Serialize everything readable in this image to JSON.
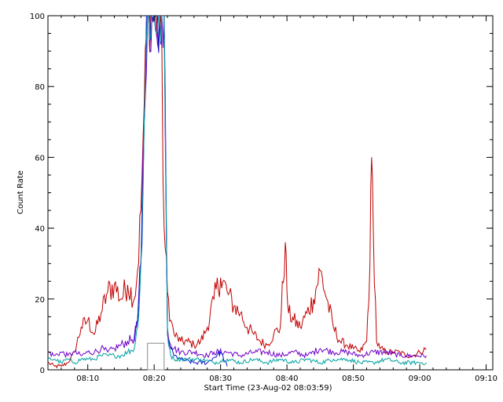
{
  "chart_data": {
    "type": "line",
    "title": "",
    "xlabel": "Start Time (23-Aug-02 08:03:59)",
    "ylabel": "Count Rate",
    "x_unit": "time (HH:MM, 23-Aug-02)",
    "xlim": [
      "08:04",
      "09:11"
    ],
    "ylim": [
      0,
      100
    ],
    "x_ticks": [
      "08:10",
      "08:20",
      "08:30",
      "08:40",
      "08:50",
      "09:00",
      "09:10"
    ],
    "y_ticks": [
      0,
      20,
      40,
      60,
      80,
      100
    ],
    "grid": false,
    "legend": "none",
    "series": [
      {
        "color": "#c00000",
        "x": [
          "08:04",
          "08:05",
          "08:06",
          "08:07",
          "08:08",
          "08:09",
          "08:10",
          "08:11",
          "08:12",
          "08:13",
          "08:14",
          "08:15",
          "08:16",
          "08:17",
          "08:17:30",
          "08:18",
          "08:18:30",
          "08:19",
          "08:19:30",
          "08:20",
          "08:20:15",
          "08:20:30",
          "08:21",
          "08:21:30",
          "08:22",
          "08:22:30",
          "08:23",
          "08:24",
          "08:25",
          "08:26",
          "08:27",
          "08:28",
          "08:29",
          "08:30",
          "08:31",
          "08:32",
          "08:33",
          "08:34",
          "08:35",
          "08:36",
          "08:37",
          "08:38",
          "08:39",
          "08:39:45",
          "08:40",
          "08:40:15",
          "08:41",
          "08:42",
          "08:43",
          "08:44",
          "08:45",
          "08:46",
          "08:47",
          "08:48",
          "08:49",
          "08:50",
          "08:51",
          "08:52",
          "08:52:30",
          "08:52:45",
          "08:53",
          "08:53:30",
          "08:54",
          "08:55",
          "08:56",
          "08:57",
          "08:58",
          "08:59",
          "09:00",
          "09:01"
        ],
        "values": [
          2,
          1,
          1,
          2,
          5,
          12,
          14,
          10,
          16,
          22,
          24,
          20,
          24,
          20,
          28,
          45,
          75,
          100,
          100,
          100,
          100,
          92,
          100,
          40,
          22,
          14,
          10,
          8,
          8,
          7,
          8,
          12,
          20,
          26,
          22,
          18,
          16,
          12,
          10,
          8,
          7,
          10,
          12,
          36,
          22,
          16,
          14,
          12,
          16,
          20,
          28,
          20,
          12,
          8,
          7,
          6,
          5,
          8,
          30,
          60,
          40,
          8,
          6,
          5,
          5,
          5,
          4,
          4,
          5,
          6
        ]
      },
      {
        "color": "#7000c8",
        "x": [
          "08:04",
          "08:05",
          "08:06",
          "08:07",
          "08:08",
          "08:09",
          "08:10",
          "08:11",
          "08:12",
          "08:13",
          "08:14",
          "08:15",
          "08:16",
          "08:17",
          "08:17:30",
          "08:18",
          "08:18:30",
          "08:19",
          "08:21:30",
          "08:22",
          "08:22:30",
          "08:23",
          "08:24",
          "08:26",
          "08:28",
          "08:29",
          "08:31",
          "08:33",
          "08:35",
          "08:37",
          "08:39",
          "08:41",
          "08:43",
          "08:45",
          "08:47",
          "08:49",
          "08:51",
          "08:53",
          "08:55",
          "08:57",
          "08:59",
          "09:01"
        ],
        "values": [
          5,
          4,
          5,
          4,
          5,
          4,
          5,
          5,
          6,
          5,
          6,
          7,
          8,
          9,
          14,
          30,
          70,
          100,
          100,
          12,
          7,
          6,
          5,
          5,
          4,
          5,
          5,
          4,
          5,
          5,
          4,
          5,
          4,
          6,
          5,
          5,
          4,
          5,
          5,
          4,
          4,
          4
        ]
      },
      {
        "color": "#1010d0",
        "x": [
          "08:17",
          "08:17:30",
          "08:18",
          "08:18:30",
          "08:19",
          "08:21:30",
          "08:22",
          "08:22:30",
          "08:23",
          "08:24",
          "08:26",
          "08:28",
          "08:30",
          "08:31"
        ],
        "values": [
          8,
          14,
          30,
          70,
          100,
          100,
          10,
          6,
          4,
          3,
          2,
          2,
          5,
          1
        ]
      },
      {
        "color": "#00a0a0",
        "x": [
          "08:04",
          "08:05",
          "08:06",
          "08:07",
          "08:08",
          "08:09",
          "08:10",
          "08:11",
          "08:12",
          "08:13",
          "08:14",
          "08:15",
          "08:16",
          "08:17",
          "08:17:30",
          "08:18",
          "08:18:30",
          "08:19",
          "08:21:30",
          "08:22",
          "08:22:30",
          "08:23",
          "08:25",
          "08:27",
          "08:29",
          "08:31",
          "08:33",
          "08:35",
          "08:37",
          "08:39",
          "08:41",
          "08:43",
          "08:45",
          "08:47",
          "08:49",
          "08:51",
          "08:53",
          "08:55",
          "08:57",
          "08:59",
          "09:01"
        ],
        "values": [
          3,
          3,
          2,
          3,
          2,
          3,
          3,
          3,
          4,
          4,
          4,
          4,
          5,
          6,
          12,
          30,
          70,
          100,
          100,
          10,
          4,
          3,
          3,
          3,
          2,
          3,
          2,
          3,
          2,
          3,
          2,
          3,
          2,
          3,
          3,
          2,
          2,
          3,
          2,
          2,
          2
        ]
      }
    ],
    "annotations": [
      {
        "shape": "rectangle",
        "x": [
          "08:19",
          "08:21:30"
        ],
        "y": [
          0,
          7.5
        ],
        "color": "#888888"
      }
    ]
  }
}
